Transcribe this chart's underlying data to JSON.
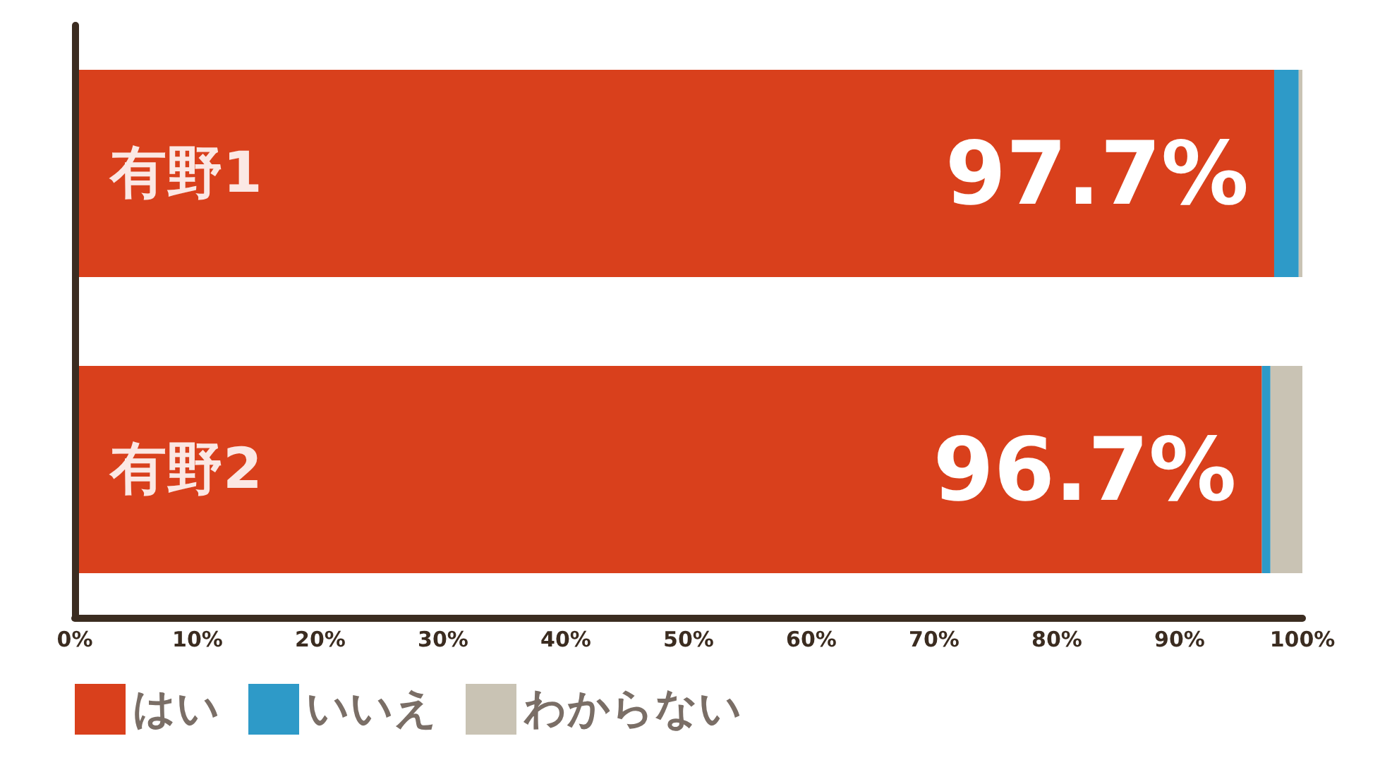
{
  "chart_data": {
    "type": "bar",
    "orientation": "horizontal",
    "stacked": true,
    "categories": [
      "有野1",
      "有野2"
    ],
    "series": [
      {
        "name": "はい",
        "color": "#d9401c",
        "values": [
          97.7,
          96.7
        ],
        "value_labels": [
          "97.7%",
          "96.7%"
        ]
      },
      {
        "name": "いいえ",
        "color": "#2e9ac8",
        "values": [
          2.0,
          0.7
        ]
      },
      {
        "name": "わからない",
        "color": "#c9c3b4",
        "values": [
          0.3,
          2.6
        ]
      }
    ],
    "xlim": [
      0,
      100
    ],
    "xticks": [
      {
        "value": 0,
        "label": "0%"
      },
      {
        "value": 10,
        "label": "10%"
      },
      {
        "value": 20,
        "label": "20%"
      },
      {
        "value": 30,
        "label": "30%"
      },
      {
        "value": 40,
        "label": "40%"
      },
      {
        "value": 50,
        "label": "50%"
      },
      {
        "value": 60,
        "label": "60%"
      },
      {
        "value": 70,
        "label": "70%"
      },
      {
        "value": 80,
        "label": "80%"
      },
      {
        "value": 90,
        "label": "90%"
      },
      {
        "value": 100,
        "label": "100%"
      }
    ],
    "legend": "bottom left",
    "grid": false
  }
}
